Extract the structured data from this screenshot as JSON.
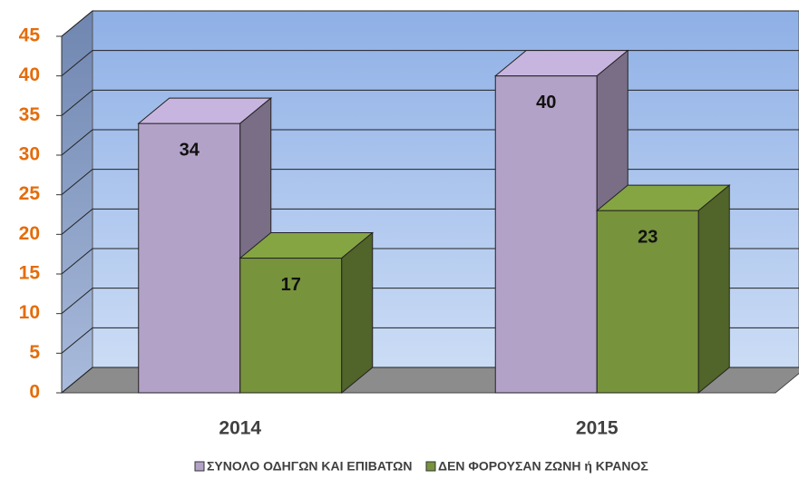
{
  "chart_data": {
    "type": "bar3d",
    "categories": [
      "2014",
      "2015"
    ],
    "series": [
      {
        "name": "ΣΥΝΟΛΟ ΟΔΗΓΩΝ ΚΑΙ ΕΠΙΒΑΤΩΝ",
        "color": "#b3a2c7",
        "values": [
          34,
          40
        ]
      },
      {
        "name": "ΔΕΝ ΦΟΡΟΥΣΑΝ ΖΩΝΗ ή ΚΡΑΝΟΣ",
        "color": "#77933c",
        "values": [
          17,
          23
        ]
      }
    ],
    "ylim": [
      0,
      45
    ],
    "yticks": [
      0,
      5,
      10,
      15,
      20,
      25,
      30,
      35,
      40,
      45
    ],
    "grid": true,
    "legend": "bottom"
  }
}
